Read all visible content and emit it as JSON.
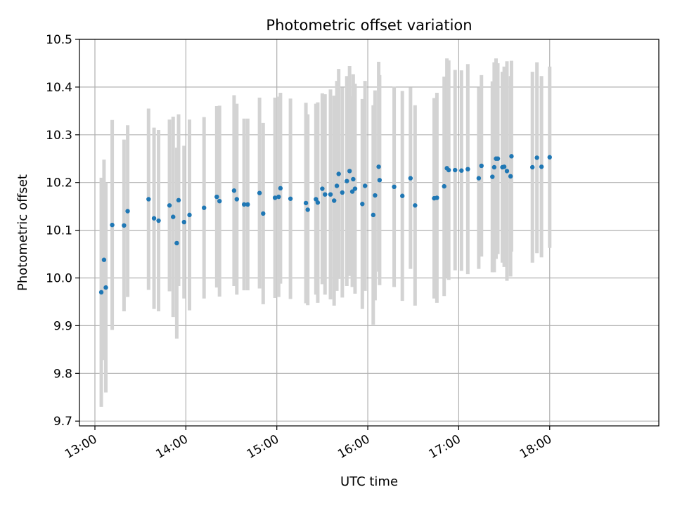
{
  "chart_data": {
    "type": "scatter",
    "title": "Photometric offset variation",
    "xlabel": "UTC time",
    "ylabel": "Photometric offset",
    "x_unit": "hours (UTC)",
    "xlim": [
      12.83,
      19.2
    ],
    "ylim": [
      9.69,
      10.5
    ],
    "x_ticks": [
      13,
      14,
      15,
      16,
      17,
      18
    ],
    "x_tick_labels": [
      "13:00",
      "14:00",
      "15:00",
      "16:00",
      "17:00",
      "18:00"
    ],
    "y_ticks": [
      9.7,
      9.8,
      9.9,
      10.0,
      10.1,
      10.2,
      10.3,
      10.4,
      10.5
    ],
    "y_tick_labels": [
      "9.7",
      "9.8",
      "9.9",
      "10.0",
      "10.1",
      "10.2",
      "10.3",
      "10.4",
      "10.5"
    ],
    "grid": true,
    "colors": {
      "point": "#1f77b4",
      "errorbar": "#d3d3d3",
      "grid": "#b0b0b0"
    },
    "points": [
      {
        "x": 13.07,
        "y": 9.97,
        "err": 0.24
      },
      {
        "x": 13.1,
        "y": 10.038,
        "err": 0.21
      },
      {
        "x": 13.12,
        "y": 9.98,
        "err": 0.22
      },
      {
        "x": 13.19,
        "y": 10.111,
        "err": 0.22
      },
      {
        "x": 13.32,
        "y": 10.11,
        "err": 0.18
      },
      {
        "x": 13.36,
        "y": 10.14,
        "err": 0.18
      },
      {
        "x": 13.59,
        "y": 10.165,
        "err": 0.19
      },
      {
        "x": 13.65,
        "y": 10.125,
        "err": 0.19
      },
      {
        "x": 13.7,
        "y": 10.12,
        "err": 0.19
      },
      {
        "x": 13.82,
        "y": 10.152,
        "err": 0.18
      },
      {
        "x": 13.86,
        "y": 10.128,
        "err": 0.21
      },
      {
        "x": 13.9,
        "y": 10.073,
        "err": 0.2
      },
      {
        "x": 13.92,
        "y": 10.163,
        "err": 0.18
      },
      {
        "x": 13.98,
        "y": 10.117,
        "err": 0.16
      },
      {
        "x": 14.04,
        "y": 10.132,
        "err": 0.2
      },
      {
        "x": 14.2,
        "y": 10.147,
        "err": 0.19
      },
      {
        "x": 14.34,
        "y": 10.17,
        "err": 0.19
      },
      {
        "x": 14.37,
        "y": 10.161,
        "err": 0.2
      },
      {
        "x": 14.53,
        "y": 10.183,
        "err": 0.2
      },
      {
        "x": 14.56,
        "y": 10.165,
        "err": 0.2
      },
      {
        "x": 14.64,
        "y": 10.154,
        "err": 0.18
      },
      {
        "x": 14.68,
        "y": 10.154,
        "err": 0.18
      },
      {
        "x": 14.81,
        "y": 10.178,
        "err": 0.2
      },
      {
        "x": 14.85,
        "y": 10.135,
        "err": 0.19
      },
      {
        "x": 14.98,
        "y": 10.168,
        "err": 0.21
      },
      {
        "x": 15.02,
        "y": 10.17,
        "err": 0.21
      },
      {
        "x": 15.04,
        "y": 10.188,
        "err": 0.2
      },
      {
        "x": 15.15,
        "y": 10.166,
        "err": 0.21
      },
      {
        "x": 15.32,
        "y": 10.157,
        "err": 0.21
      },
      {
        "x": 15.34,
        "y": 10.143,
        "err": 0.2
      },
      {
        "x": 15.43,
        "y": 10.165,
        "err": 0.2
      },
      {
        "x": 15.45,
        "y": 10.158,
        "err": 0.21
      },
      {
        "x": 15.5,
        "y": 10.187,
        "err": 0.2
      },
      {
        "x": 15.53,
        "y": 10.175,
        "err": 0.21
      },
      {
        "x": 15.59,
        "y": 10.175,
        "err": 0.22
      },
      {
        "x": 15.63,
        "y": 10.162,
        "err": 0.22
      },
      {
        "x": 15.66,
        "y": 10.193,
        "err": 0.22
      },
      {
        "x": 15.68,
        "y": 10.218,
        "err": 0.22
      },
      {
        "x": 15.72,
        "y": 10.179,
        "err": 0.22
      },
      {
        "x": 15.77,
        "y": 10.203,
        "err": 0.22
      },
      {
        "x": 15.8,
        "y": 10.224,
        "err": 0.22
      },
      {
        "x": 15.83,
        "y": 10.181,
        "err": 0.2
      },
      {
        "x": 15.86,
        "y": 10.187,
        "err": 0.22
      },
      {
        "x": 15.84,
        "y": 10.207,
        "err": 0.22
      },
      {
        "x": 15.94,
        "y": 10.155,
        "err": 0.22
      },
      {
        "x": 15.97,
        "y": 10.193,
        "err": 0.22
      },
      {
        "x": 16.06,
        "y": 10.132,
        "err": 0.23
      },
      {
        "x": 16.08,
        "y": 10.173,
        "err": 0.22
      },
      {
        "x": 16.12,
        "y": 10.233,
        "err": 0.22
      },
      {
        "x": 16.13,
        "y": 10.205,
        "err": 0.22
      },
      {
        "x": 16.29,
        "y": 10.191,
        "err": 0.21
      },
      {
        "x": 16.38,
        "y": 10.172,
        "err": 0.22
      },
      {
        "x": 16.47,
        "y": 10.209,
        "err": 0.19
      },
      {
        "x": 16.52,
        "y": 10.152,
        "err": 0.21
      },
      {
        "x": 16.73,
        "y": 10.167,
        "err": 0.21
      },
      {
        "x": 16.76,
        "y": 10.168,
        "err": 0.22
      },
      {
        "x": 16.84,
        "y": 10.192,
        "err": 0.23
      },
      {
        "x": 16.87,
        "y": 10.23,
        "err": 0.23
      },
      {
        "x": 16.89,
        "y": 10.226,
        "err": 0.23
      },
      {
        "x": 16.96,
        "y": 10.226,
        "err": 0.21
      },
      {
        "x": 17.03,
        "y": 10.225,
        "err": 0.21
      },
      {
        "x": 17.1,
        "y": 10.228,
        "err": 0.22
      },
      {
        "x": 17.22,
        "y": 10.209,
        "err": 0.19
      },
      {
        "x": 17.25,
        "y": 10.235,
        "err": 0.19
      },
      {
        "x": 17.37,
        "y": 10.212,
        "err": 0.2
      },
      {
        "x": 17.39,
        "y": 10.232,
        "err": 0.22
      },
      {
        "x": 17.41,
        "y": 10.25,
        "err": 0.21
      },
      {
        "x": 17.43,
        "y": 10.25,
        "err": 0.2
      },
      {
        "x": 17.48,
        "y": 10.232,
        "err": 0.2
      },
      {
        "x": 17.5,
        "y": 10.233,
        "err": 0.21
      },
      {
        "x": 17.53,
        "y": 10.224,
        "err": 0.23
      },
      {
        "x": 17.57,
        "y": 10.213,
        "err": 0.21
      },
      {
        "x": 17.58,
        "y": 10.255,
        "err": 0.2
      },
      {
        "x": 17.81,
        "y": 10.232,
        "err": 0.2
      },
      {
        "x": 17.86,
        "y": 10.252,
        "err": 0.2
      },
      {
        "x": 17.91,
        "y": 10.233,
        "err": 0.19
      },
      {
        "x": 18.0,
        "y": 10.253,
        "err": 0.19
      }
    ]
  }
}
